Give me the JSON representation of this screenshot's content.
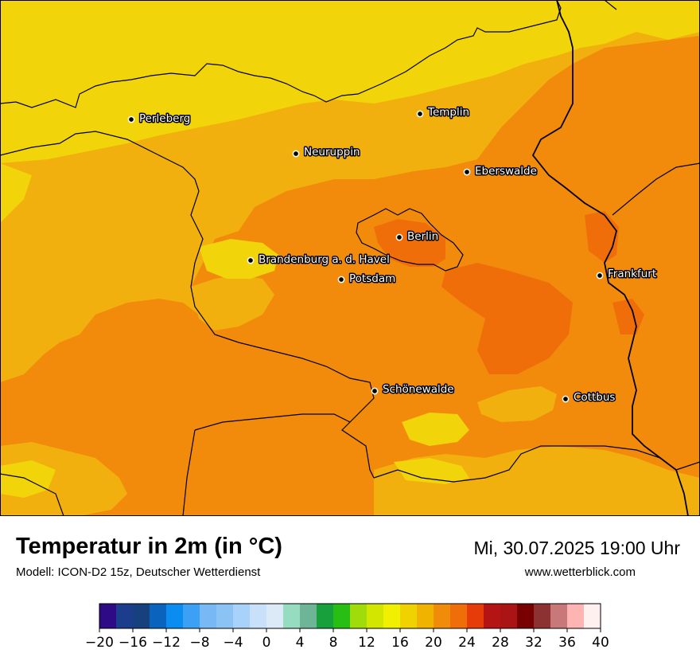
{
  "map": {
    "cities": [
      {
        "name": "Perleberg"
      },
      {
        "name": "Templin"
      },
      {
        "name": "Neuruppin"
      },
      {
        "name": "Eberswalde"
      },
      {
        "name": "Berlin"
      },
      {
        "name": "Brandenburg a. d. Havel"
      },
      {
        "name": "Potsdam"
      },
      {
        "name": "Frankfurt"
      },
      {
        "name": "Schönewalde"
      },
      {
        "name": "Cottbus"
      }
    ]
  },
  "footer": {
    "title": "Temperatur in 2m (in °C)",
    "model": "Modell: ICON-D2 15z, Deutscher Wetterdienst",
    "datetime": "Mi, 30.07.2025 19:00 Uhr",
    "website": "www.wetterblick.com"
  },
  "colorbar": {
    "min": -20,
    "max": 40,
    "step": 2,
    "tick_labels": [
      "−20",
      "−16",
      "−12",
      "−8",
      "−4",
      "0",
      "4",
      "8",
      "12",
      "16",
      "20",
      "24",
      "28",
      "32",
      "36",
      "40"
    ],
    "colors": [
      "#2e0a86",
      "#1c3c8c",
      "#16417e",
      "#0a64be",
      "#0a8cf0",
      "#3ca0f5",
      "#78b9f5",
      "#8cc3f5",
      "#a8d2fa",
      "#c8e0fa",
      "#dceaf8",
      "#96dcc0",
      "#6eb496",
      "#18a03c",
      "#28be14",
      "#a0dc0a",
      "#d2e600",
      "#f0f000",
      "#f0d200",
      "#f0b400",
      "#f08c0a",
      "#f06e0a",
      "#e63c0a",
      "#b41414",
      "#aa1414",
      "#780000",
      "#8c3232",
      "#c87878",
      "#ffb4b4",
      "#fff0f0"
    ]
  }
}
